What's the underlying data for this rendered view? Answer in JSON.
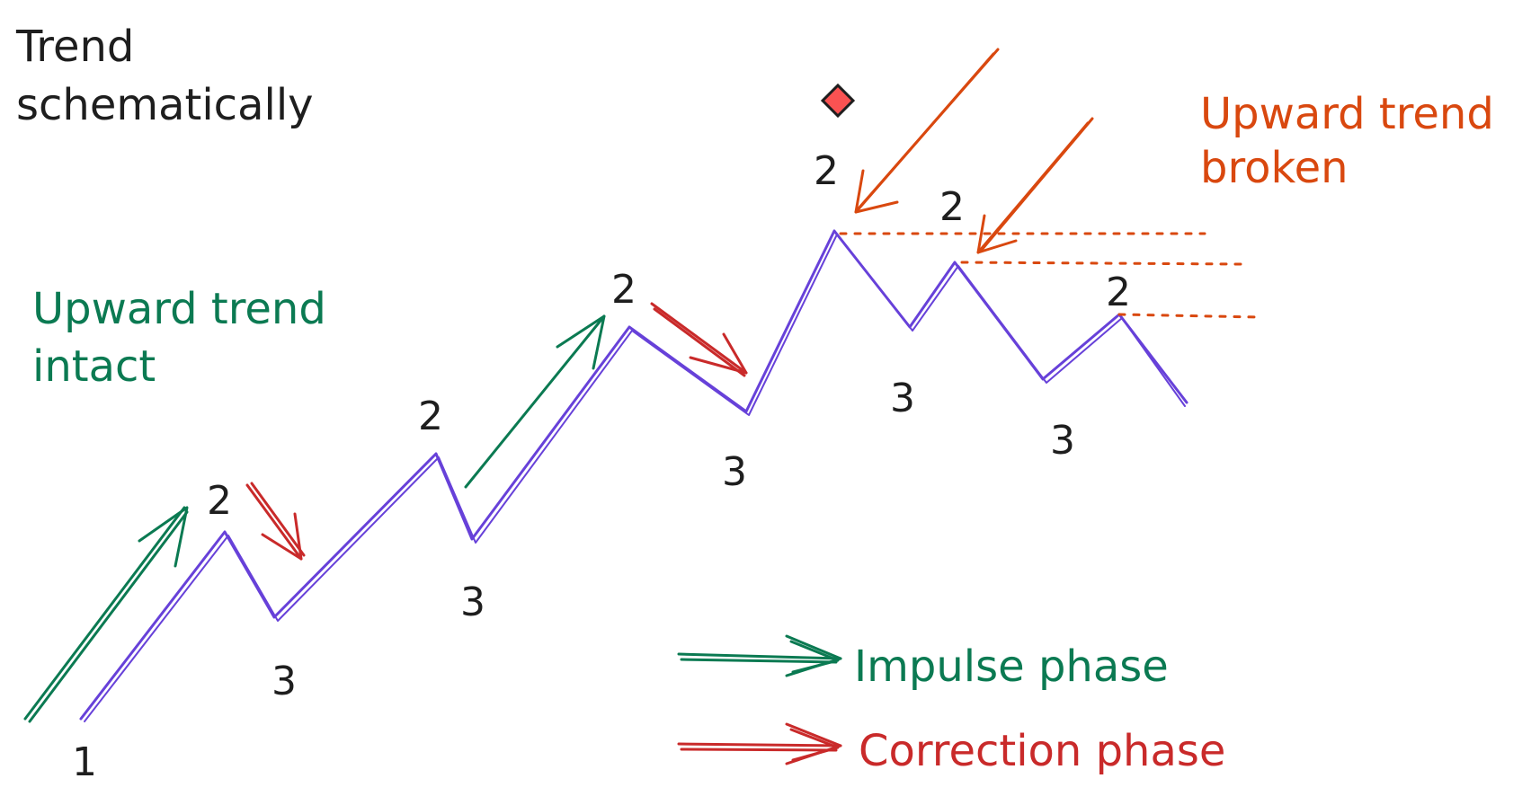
{
  "title": "Trend schematically",
  "title_lines": [
    "Trend",
    "schematically"
  ],
  "labels": {
    "upward_intact": [
      "Upward trend",
      "intact"
    ],
    "upward_broken": [
      "Upward trend",
      "broken"
    ]
  },
  "points": {
    "one": "1",
    "two": "2",
    "three": "3"
  },
  "legend": {
    "impulse": "Impulse phase",
    "correction": "Correction phase"
  },
  "colors": {
    "text": "#1e1e1e",
    "trend_line": "#6741d9",
    "impulse": "#0b7a52",
    "correction": "#c92a2a",
    "broken": "#d9480f",
    "marker": "#fa5252"
  },
  "icons": {
    "marker": "diamond-icon"
  }
}
